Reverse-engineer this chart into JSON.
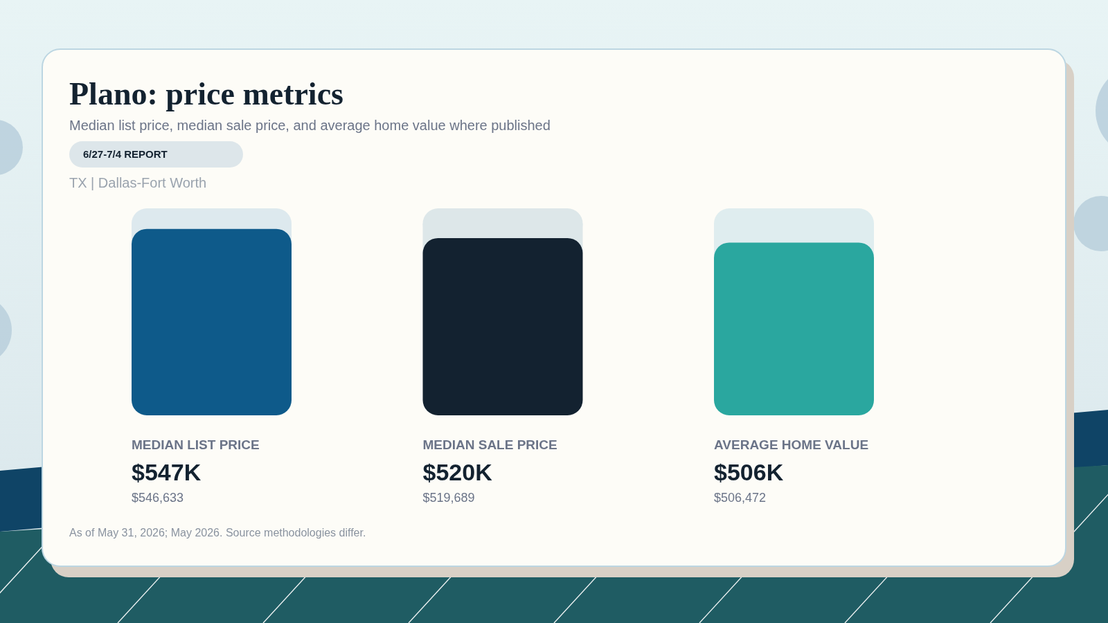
{
  "chart_data": {
    "type": "bar",
    "title": "Plano: price metrics",
    "subtitle": "Median list price, median sale price, and average home value where published",
    "categories": [
      "MEDIAN LIST PRICE",
      "MEDIAN SALE PRICE",
      "AVERAGE HOME VALUE"
    ],
    "values": [
      546633,
      519689,
      506472
    ],
    "colors": [
      "#0e5a8a",
      "#132230",
      "#2aa79f"
    ],
    "value_labels": [
      "$547K",
      "$520K",
      "$506K"
    ],
    "annotations": [
      "6/27-7/4 REPORT",
      "TX | Dallas-Fort Worth",
      "$546,633",
      "$519,689",
      "$506,472",
      "As of May 31, 2026; May 2026. Source methodologies differ."
    ]
  }
}
